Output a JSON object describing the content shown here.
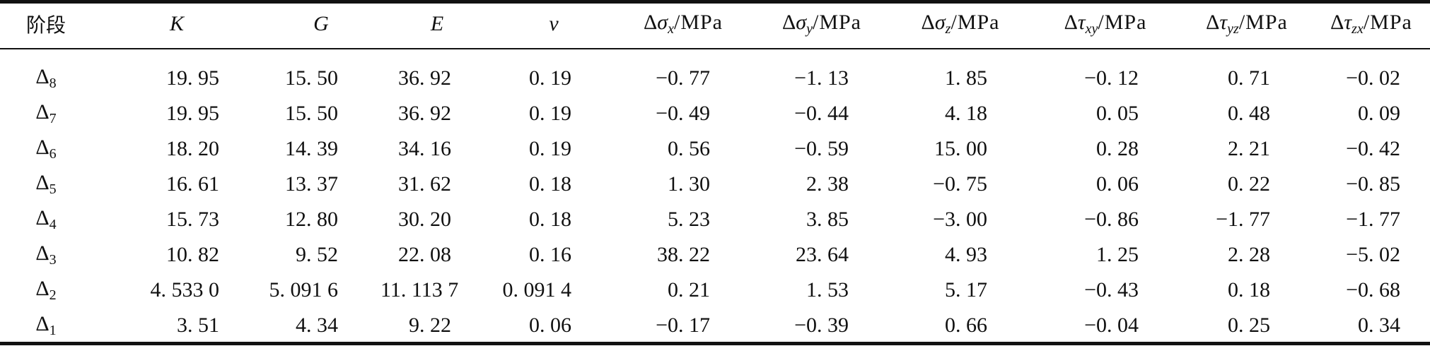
{
  "table": {
    "headers": {
      "stage": "阶段",
      "K": "K",
      "G": "G",
      "E": "E",
      "nu": "ν",
      "delta": "Δ",
      "sigma": "σ",
      "tau": "τ",
      "unit": "/MPa",
      "sub_x": "x",
      "sub_y": "y",
      "sub_z": "z",
      "sub_xy": "xy",
      "sub_yz": "yz",
      "sub_zx": "zx"
    },
    "rows": [
      {
        "stage": "Δ",
        "stage_sub": "8",
        "K": "19. 95",
        "G": "15. 50",
        "E": "36. 92",
        "nu": "0. 19",
        "sx": "−0. 77",
        "sy": "−1. 13",
        "sz": "1. 85",
        "txy": "−0. 12",
        "tyz": "0. 71",
        "tzx": "−0. 02"
      },
      {
        "stage": "Δ",
        "stage_sub": "7",
        "K": "19. 95",
        "G": "15. 50",
        "E": "36. 92",
        "nu": "0. 19",
        "sx": "−0. 49",
        "sy": "−0. 44",
        "sz": "4. 18",
        "txy": "0. 05",
        "tyz": "0. 48",
        "tzx": "0. 09"
      },
      {
        "stage": "Δ",
        "stage_sub": "6",
        "K": "18. 20",
        "G": "14. 39",
        "E": "34. 16",
        "nu": "0. 19",
        "sx": "0. 56",
        "sy": "−0. 59",
        "sz": "15. 00",
        "txy": "0. 28",
        "tyz": "2. 21",
        "tzx": "−0. 42"
      },
      {
        "stage": "Δ",
        "stage_sub": "5",
        "K": "16. 61",
        "G": "13. 37",
        "E": "31. 62",
        "nu": "0. 18",
        "sx": "1. 30",
        "sy": "2. 38",
        "sz": "−0. 75",
        "txy": "0. 06",
        "tyz": "0. 22",
        "tzx": "−0. 85"
      },
      {
        "stage": "Δ",
        "stage_sub": "4",
        "K": "15. 73",
        "G": "12. 80",
        "E": "30. 20",
        "nu": "0. 18",
        "sx": "5. 23",
        "sy": "3. 85",
        "sz": "−3. 00",
        "txy": "−0. 86",
        "tyz": "−1. 77",
        "tzx": "−1. 77"
      },
      {
        "stage": "Δ",
        "stage_sub": "3",
        "K": "10. 82",
        "G": "9. 52",
        "E": "22. 08",
        "nu": "0. 16",
        "sx": "38. 22",
        "sy": "23. 64",
        "sz": "4. 93",
        "txy": "1. 25",
        "tyz": "2. 28",
        "tzx": "−5. 02"
      },
      {
        "stage": "Δ",
        "stage_sub": "2",
        "K": "4. 533 0",
        "G": "5. 091 6",
        "E": "11. 113 7",
        "nu": "0. 091 4",
        "sx": "0. 21",
        "sy": "1. 53",
        "sz": "5. 17",
        "txy": "−0. 43",
        "tyz": "0. 18",
        "tzx": "−0. 68"
      },
      {
        "stage": "Δ",
        "stage_sub": "1",
        "K": "3. 51",
        "G": "4. 34",
        "E": "9. 22",
        "nu": "0. 06",
        "sx": "−0. 17",
        "sy": "−0. 39",
        "sz": "0. 66",
        "txy": "−0. 04",
        "tyz": "0. 25",
        "tzx": "0. 34"
      }
    ]
  }
}
